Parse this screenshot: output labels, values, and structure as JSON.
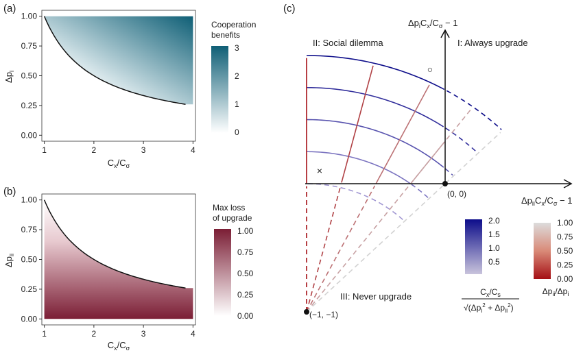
{
  "panels": {
    "a": "(a)",
    "b": "(b)",
    "c": "(c)"
  },
  "chart_data": [
    {
      "id": "a",
      "type": "heatmap",
      "xlabel_main": "C",
      "xlabel_sub1": "x",
      "xlabel_mid": "/C",
      "xlabel_sub2": "σ",
      "ylabel_main": "Δp",
      "ylabel_sub": "i",
      "xlim": [
        0.95,
        4.05
      ],
      "ylim": [
        -0.05,
        1.05
      ],
      "x_ticks": [
        1,
        2,
        3,
        4
      ],
      "y_ticks": [
        "0.00",
        "0.25",
        "0.50",
        "0.75",
        "1.00"
      ],
      "curve": {
        "x": [
          1,
          1.25,
          1.5,
          2,
          2.5,
          3,
          3.5,
          3.85
        ],
        "y": [
          1.0,
          0.8,
          0.667,
          0.5,
          0.4,
          0.333,
          0.286,
          0.26
        ]
      },
      "fill": "above-curve",
      "legend": {
        "title_line1": "Cooperation",
        "title_line2": "benefits",
        "ticks": [
          "3",
          "2",
          "1",
          "0"
        ],
        "range": [
          0,
          3
        ],
        "color_low": "#ffffff",
        "color_high": "#0f5f76"
      }
    },
    {
      "id": "b",
      "type": "heatmap",
      "xlabel_main": "C",
      "xlabel_sub1": "x",
      "xlabel_mid": "/C",
      "xlabel_sub2": "σ",
      "ylabel_main": "Δp",
      "ylabel_sub": "ii",
      "xlim": [
        0.95,
        4.05
      ],
      "ylim": [
        -0.05,
        1.05
      ],
      "x_ticks": [
        1,
        2,
        3,
        4
      ],
      "y_ticks": [
        "0.00",
        "0.25",
        "0.50",
        "0.75",
        "1.00"
      ],
      "curve": {
        "x": [
          1,
          1.25,
          1.5,
          2,
          2.5,
          3,
          3.5,
          3.85
        ],
        "y": [
          1.0,
          0.8,
          0.667,
          0.5,
          0.4,
          0.333,
          0.286,
          0.26
        ]
      },
      "fill": "below-curve",
      "legend": {
        "title_line1": "Max loss",
        "title_line2": "of upgrade",
        "ticks": [
          "1.00",
          "0.75",
          "0.50",
          "0.25",
          "0.00"
        ],
        "range": [
          0,
          1
        ],
        "color_low": "#ffffff",
        "color_high": "#7b1e35"
      }
    },
    {
      "id": "c",
      "type": "line",
      "xlabel_a": "Δp",
      "xlabel_b": "ii",
      "xlabel_c": "C",
      "xlabel_d": "x",
      "xlabel_e": "/C",
      "xlabel_f": "σ",
      "xlabel_g": " − 1",
      "ylabel_a": "Δp",
      "ylabel_b": "i",
      "ylabel_c": "C",
      "ylabel_d": "x",
      "ylabel_e": "/C",
      "ylabel_f": "σ",
      "ylabel_g": " − 1",
      "region_labels": [
        "II: Social dilemma",
        "I: Always upgrade",
        "III: Never upgrade"
      ],
      "origin_label": "(0, 0)",
      "corner_label": "(−1, −1)",
      "radial_ratios": [
        0.0,
        0.25,
        0.5,
        0.75,
        1.0
      ],
      "arc_radii": [
        1.0,
        1.25,
        1.5,
        1.75,
        2.0
      ],
      "markers": [
        "○",
        "×"
      ],
      "legend_blue": {
        "title_line1": "C",
        "title_sub1": "x",
        "title_mid": "/C",
        "title_sub2": "s",
        "title_den": "√(Δp",
        "ticks": [
          "2.0",
          "1.5",
          "1.0",
          "0.5"
        ],
        "color_low": "#c9c4dc",
        "color_high": "#0d0d8a"
      },
      "legend_red": {
        "title": "Δp",
        "title_sub": "ii",
        "title_mid": "/Δp",
        "title_sub2": "i",
        "ticks": [
          "1.00",
          "0.75",
          "0.50",
          "0.25",
          "0.00"
        ],
        "color_low": "#a50f15",
        "color_high": "#d9d9d9"
      }
    }
  ]
}
